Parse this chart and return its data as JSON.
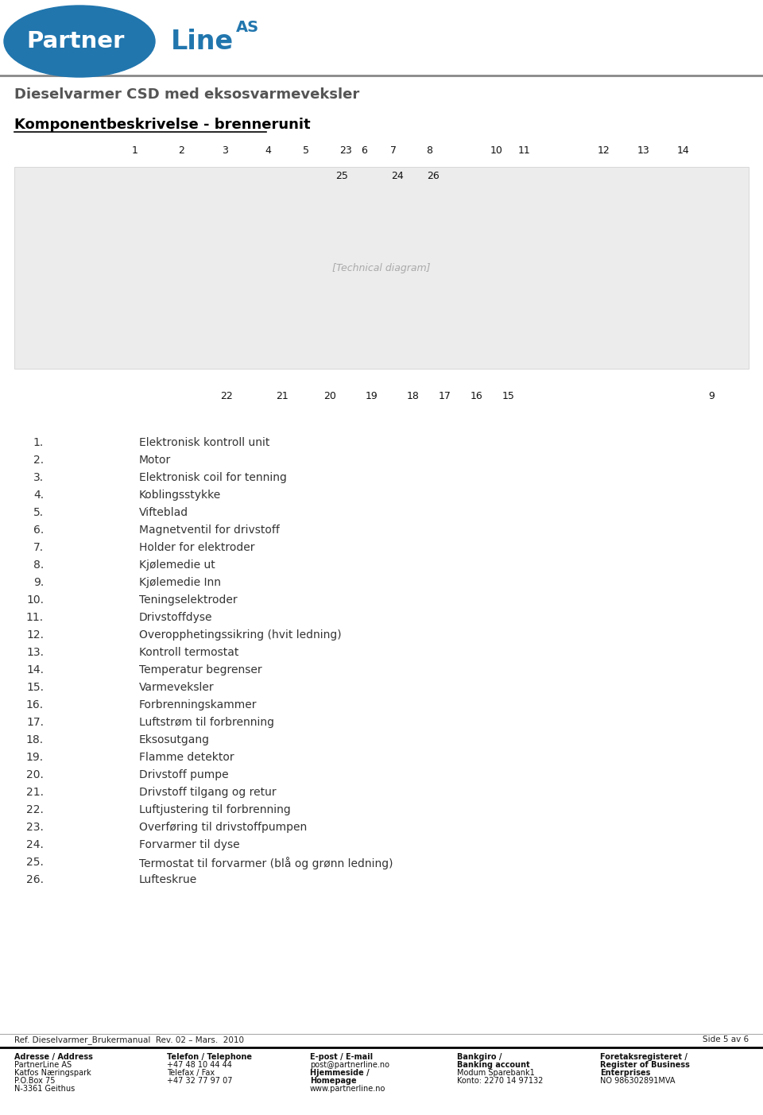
{
  "page_width": 9.6,
  "page_height": 14.03,
  "dpi": 100,
  "bg_color": "#ffffff",
  "logo_circle_color": "#2176AE",
  "logo_text_partner": "Partner",
  "logo_text_line": "Line",
  "logo_text_as": "AS",
  "header_line_color": "#888888",
  "title1": "Dieselvarmer CSD med eksosvarmeveksler",
  "title2": "Komponentbeskrivelse - brennerunit",
  "title1_color": "#555555",
  "title2_color": "#000000",
  "component_list": [
    [
      "1.",
      "Elektronisk kontroll unit"
    ],
    [
      "2.",
      "Motor"
    ],
    [
      "3.",
      "Elektronisk coil for tenning"
    ],
    [
      "4.",
      "Koblingsstykke"
    ],
    [
      "5.",
      "Vifteblad"
    ],
    [
      "6.",
      "Magnetventil for drivstoff"
    ],
    [
      "7.",
      "Holder for elektroder"
    ],
    [
      "8.",
      "Kjølemedie ut"
    ],
    [
      "9.",
      "Kjølemedie Inn"
    ],
    [
      "10.",
      "Teningselektroder"
    ],
    [
      "11.",
      "Drivstoffdyse"
    ],
    [
      "12.",
      "Overopphetingssikring (hvit ledning)"
    ],
    [
      "13.",
      "Kontroll termostat"
    ],
    [
      "14.",
      "Temperatur begrenser"
    ],
    [
      "15.",
      "Varmeveksler"
    ],
    [
      "16.",
      "Forbrenningskammer"
    ],
    [
      "17.",
      "Luftstrøm til forbrenning"
    ],
    [
      "18.",
      "Eksosutgang"
    ],
    [
      "19.",
      "Flamme detektor"
    ],
    [
      "20.",
      "Drivstoff pumpe"
    ],
    [
      "21.",
      "Drivstoff tilgang og retur"
    ],
    [
      "22.",
      "Luftjustering til forbrenning"
    ],
    [
      "23.",
      "Overføring til drivstoffpumpen"
    ],
    [
      "24.",
      "Forvarmer til dyse"
    ],
    [
      "25.",
      "Termostat til forvarmer (blå og grønn ledning)"
    ],
    [
      "26.",
      "Lufteskrue"
    ]
  ],
  "diagram_numbers_top": [
    [
      170,
      "1"
    ],
    [
      228,
      "2"
    ],
    [
      283,
      "3"
    ],
    [
      337,
      "4"
    ],
    [
      385,
      "5"
    ],
    [
      435,
      "23"
    ],
    [
      458,
      "6"
    ],
    [
      495,
      "7"
    ],
    [
      540,
      "8"
    ],
    [
      625,
      "10"
    ],
    [
      660,
      "11"
    ],
    [
      760,
      "12"
    ],
    [
      810,
      "13"
    ],
    [
      860,
      "14"
    ]
  ],
  "diagram_numbers_mid": [
    [
      430,
      "25"
    ],
    [
      500,
      "24"
    ],
    [
      545,
      "26"
    ]
  ],
  "diagram_numbers_bot": [
    [
      285,
      "22"
    ],
    [
      355,
      "21"
    ],
    [
      415,
      "20"
    ],
    [
      468,
      "19"
    ],
    [
      520,
      "18"
    ],
    [
      560,
      "17"
    ],
    [
      600,
      "16"
    ],
    [
      640,
      "15"
    ],
    [
      895,
      "9"
    ]
  ],
  "footer_ref": "Ref. Dieselvarmer_Brukermanual  Rev. 02 – Mars.  2010",
  "footer_page": "Side 5 av 6",
  "footer_cols": [
    {
      "header": [
        "Adresse / Address"
      ],
      "lines": [
        "PartnerLine AS",
        "Katfos Næringspark",
        "P.O.Box 75",
        "N-3361 Geithus"
      ],
      "bold_lines": []
    },
    {
      "header": [
        "Telefon / Telephone"
      ],
      "lines": [
        "+47 48 10 44 44",
        "Telefax / Fax",
        "+47 32 77 97 07"
      ],
      "bold_lines": []
    },
    {
      "header": [
        "E-post / E-mail"
      ],
      "lines": [
        "post@partnerline.no",
        "Hjemmeside /",
        "Homepage",
        "www.partnerline.no"
      ],
      "bold_lines": [
        1,
        2
      ]
    },
    {
      "header": [
        "Bankgiro /",
        "Banking account"
      ],
      "lines": [
        "Modum Sparebank1",
        "Konto: 2270 14 97132"
      ],
      "bold_lines": []
    },
    {
      "header": [
        "Foretaksregisteret /",
        "Register of Business",
        "Enterprises"
      ],
      "lines": [
        "NO 986302891MVA"
      ],
      "bold_lines": []
    }
  ]
}
